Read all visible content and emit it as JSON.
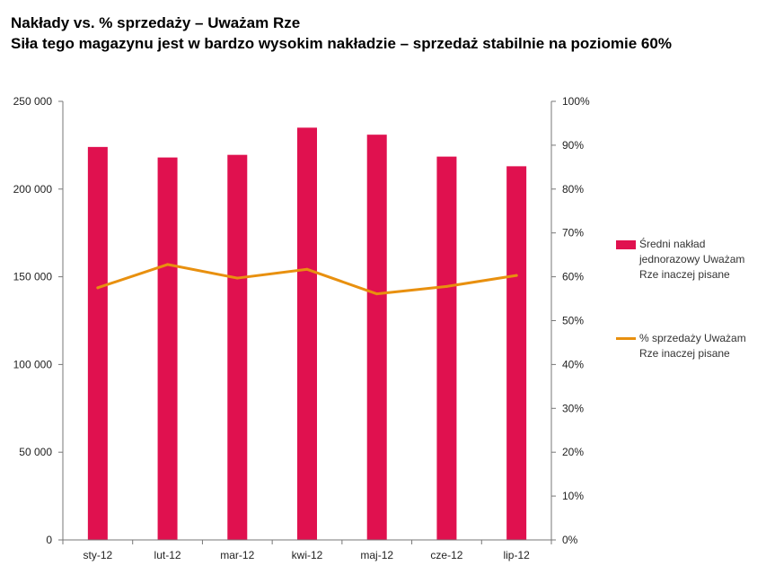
{
  "title": "Nakłady vs. % sprzedaży – Uważam Rze",
  "subtitle": "Siła tego magazynu jest w bardzo wysokim nakładzie – sprzedaż stabilnie na poziomie 60%",
  "colors": {
    "bar": "#e0114f",
    "line": "#e8900f",
    "axis": "#777777"
  },
  "chart_data": {
    "type": "bar",
    "title": "Nakłady vs. % sprzedaży – Uważam Rze",
    "categories": [
      "sty-12",
      "lut-12",
      "mar-12",
      "kwi-12",
      "maj-12",
      "cze-12",
      "lip-12"
    ],
    "series": [
      {
        "name": "Średni nakład jednorazowy Uważam Rze inaczej pisane",
        "type": "bar",
        "axis": "left",
        "values": [
          224000,
          218000,
          219500,
          235000,
          231000,
          218500,
          213000
        ]
      },
      {
        "name": "% sprzedaży Uważam Rze inaczej pisane",
        "type": "line",
        "axis": "right",
        "values": [
          57.5,
          62.8,
          59.7,
          61.7,
          56.1,
          57.8,
          60.3
        ]
      }
    ],
    "y_left": {
      "min": 0,
      "max": 250000,
      "step": 50000,
      "tick_labels": [
        "0",
        "50 000",
        "100 000",
        "150 000",
        "200 000",
        "250 000"
      ]
    },
    "y_right": {
      "min": 0,
      "max": 100,
      "step": 10,
      "tick_labels": [
        "0%",
        "10%",
        "20%",
        "30%",
        "40%",
        "50%",
        "60%",
        "70%",
        "80%",
        "90%",
        "100%"
      ]
    },
    "grid": false,
    "legend_position": "right"
  }
}
